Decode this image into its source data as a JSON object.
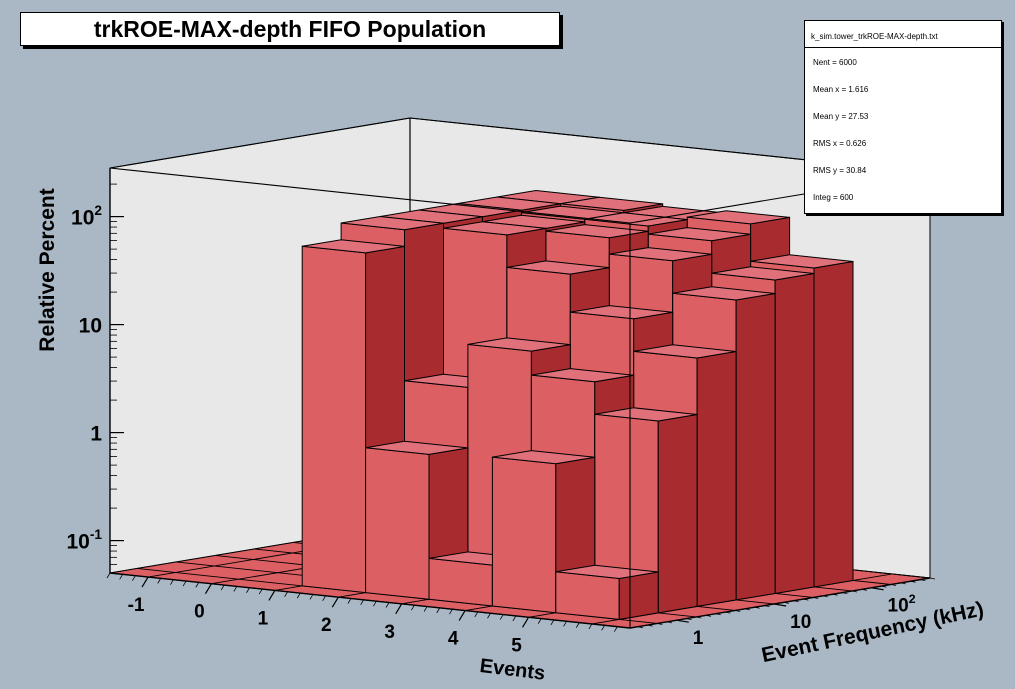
{
  "chart_data": {
    "type": "bar3d",
    "title": "trkROE-MAX-depth FIFO Population",
    "xlabel": "Events",
    "ylabel": "Event Frequency (kHz)",
    "zlabel": "Relative Percent",
    "x_ticks": [
      "-1",
      "0",
      "1",
      "2",
      "3",
      "4",
      "5"
    ],
    "y_ticks": [
      {
        "base": "1",
        "exp": ""
      },
      {
        "base": "10",
        "exp": ""
      },
      {
        "base": "10",
        "exp": "2"
      }
    ],
    "z_ticks": [
      {
        "base": "10",
        "exp": "-1"
      },
      {
        "base": "1",
        "exp": ""
      },
      {
        "base": "10",
        "exp": ""
      },
      {
        "base": "10",
        "exp": "2"
      }
    ],
    "z_scale": "log",
    "x_bins": [
      1,
      2,
      3,
      4,
      5,
      6
    ],
    "y_bins": [
      1,
      2,
      3,
      4,
      5,
      6
    ],
    "bars": [
      {
        "x": 1,
        "y": 1,
        "z": 70
      },
      {
        "x": 1,
        "y": 2,
        "z": 100
      },
      {
        "x": 1,
        "y": 3,
        "z": 100
      },
      {
        "x": 1,
        "y": 4,
        "z": 100
      },
      {
        "x": 1,
        "y": 5,
        "z": 100
      },
      {
        "x": 1,
        "y": 6,
        "z": 100
      },
      {
        "x": 2,
        "y": 1,
        "z": 1.1
      },
      {
        "x": 2,
        "y": 2,
        "z": 4
      },
      {
        "x": 2,
        "y": 3,
        "z": 90
      },
      {
        "x": 2,
        "y": 4,
        "z": 90
      },
      {
        "x": 2,
        "y": 5,
        "z": 95
      },
      {
        "x": 2,
        "y": 6,
        "z": 100
      },
      {
        "x": 3,
        "y": 1,
        "z": 0.12
      },
      {
        "x": 3,
        "y": 2,
        "z": 10
      },
      {
        "x": 3,
        "y": 3,
        "z": 45
      },
      {
        "x": 3,
        "y": 4,
        "z": 85
      },
      {
        "x": 3,
        "y": 5,
        "z": 95
      },
      {
        "x": 3,
        "y": 6,
        "z": 95
      },
      {
        "x": 4,
        "y": 1,
        "z": 1.2
      },
      {
        "x": 4,
        "y": 2,
        "z": 6
      },
      {
        "x": 4,
        "y": 3,
        "z": 20
      },
      {
        "x": 4,
        "y": 4,
        "z": 60
      },
      {
        "x": 4,
        "y": 5,
        "z": 80
      },
      {
        "x": 4,
        "y": 6,
        "z": 100
      },
      {
        "x": 5,
        "y": 1,
        "z": 0.12
      },
      {
        "x": 5,
        "y": 2,
        "z": 3
      },
      {
        "x": 5,
        "y": 3,
        "z": 10
      },
      {
        "x": 5,
        "y": 4,
        "z": 30
      },
      {
        "x": 5,
        "y": 5,
        "z": 40
      },
      {
        "x": 5,
        "y": 6,
        "z": 45
      }
    ]
  },
  "stats": {
    "name": "k_sim.tower_trkROE-MAX-depth.txt",
    "rows": [
      "Nent = 6000",
      "Mean x =  1.616",
      "Mean y =  27.53",
      "RMS x  =  0.626",
      "RMS y  =  30.84",
      "Integ  =   600"
    ]
  },
  "colors": {
    "background": "#aab8c6",
    "box_face": "#e8e8e8",
    "bar_top": "#e0717a",
    "bar_front": "#dc5f64",
    "bar_side": "#a82c2f",
    "floor": "#dc5f64"
  }
}
